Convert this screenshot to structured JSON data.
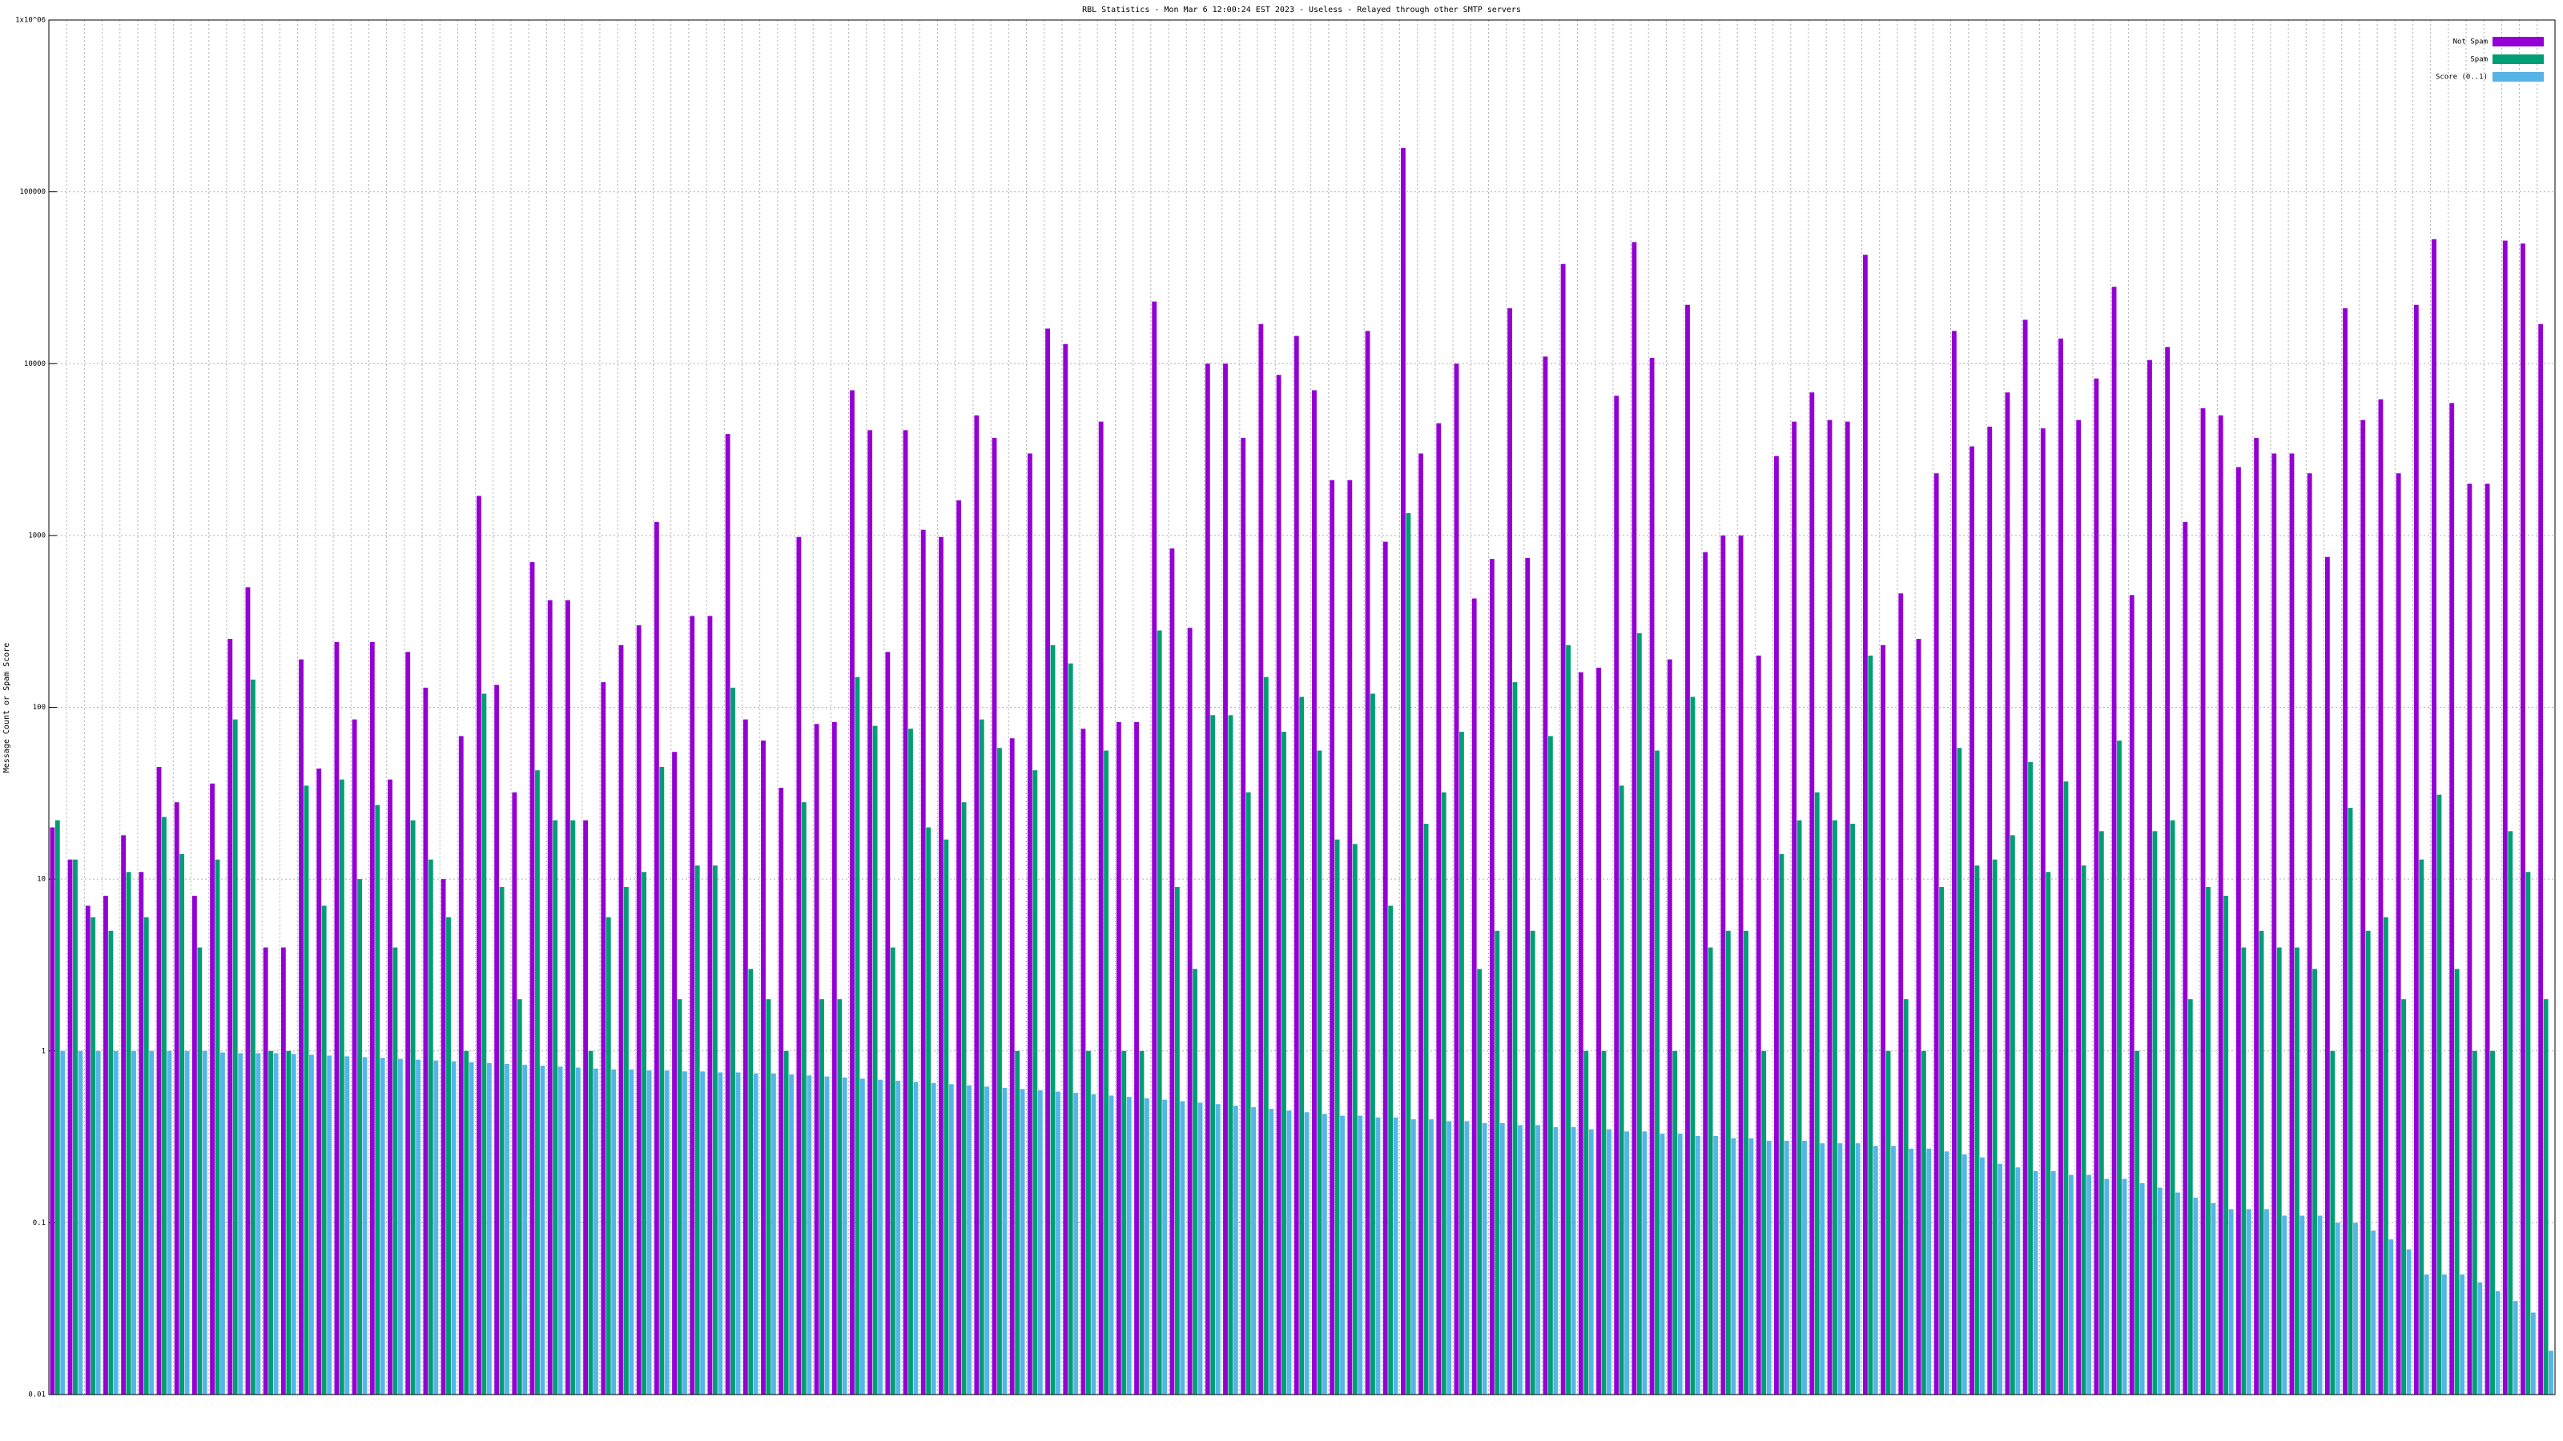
{
  "chart_data": {
    "type": "bar",
    "title": "RBL Statistics - Mon Mar  6 12:00:24 EST 2023 - Useless - Relayed through other SMTP servers",
    "ylabel": "Message Count or Spam Score",
    "log_scale": true,
    "grid": true,
    "legend": "top-right",
    "ylim": [
      0.01,
      1000000
    ],
    "yticks": [
      0.01,
      0.1,
      1,
      10,
      100,
      1000,
      10000,
      100000,
      {
        "value": 1000000,
        "label": "1x10^06"
      }
    ],
    "series": [
      {
        "name": "Not Spam",
        "color": "#9400d3",
        "values": [
          20,
          13,
          7,
          8,
          18,
          11,
          45,
          28,
          8,
          36,
          250,
          500,
          4,
          4,
          190,
          44,
          240,
          85,
          240,
          38,
          210,
          130,
          10,
          68,
          1700,
          135,
          32,
          700,
          420,
          420,
          22,
          140,
          230,
          300,
          1200,
          55,
          340,
          340,
          3900,
          85,
          64,
          34,
          980,
          80,
          82,
          7000,
          4100,
          210,
          4100,
          1080,
          980,
          1600,
          5000,
          3700,
          66,
          3000,
          16000,
          13000,
          75,
          4600,
          82,
          82,
          23000,
          840,
          290,
          10000,
          10000,
          3700,
          17000,
          8600,
          14500,
          7000,
          2100,
          2100,
          15500,
          920,
          180000,
          3000,
          4500,
          10000,
          430,
          730,
          21000,
          740,
          11000,
          38000,
          160,
          170,
          6500,
          51000,
          10800,
          190,
          22000,
          800,
          1000,
          1000,
          200,
          2900,
          4600,
          6800,
          4700,
          4600,
          43000,
          230,
          460,
          250,
          2300,
          15500,
          3300,
          4300,
          6800,
          18000,
          4200,
          14000,
          4700,
          8200,
          28000,
          450,
          10500,
          12500,
          1200,
          5500,
          5000,
          2500,
          3700,
          3000,
          3000,
          2300,
          750,
          21000,
          4700,
          6200,
          2300,
          22000,
          53000,
          5900,
          2000,
          2000,
          52000,
          50000,
          17000
        ]
      },
      {
        "name": "Spam",
        "color": "#009e73",
        "values": [
          22,
          13,
          6,
          5,
          11,
          6,
          23,
          14,
          4,
          13,
          85,
          145,
          1,
          1,
          35,
          7,
          38,
          10,
          27,
          4,
          22,
          13,
          6,
          1,
          120,
          9,
          2,
          43,
          22,
          22,
          1,
          6,
          9,
          11,
          45,
          2,
          12,
          12,
          130,
          3,
          2,
          1,
          28,
          2,
          2,
          150,
          78,
          4,
          75,
          20,
          17,
          28,
          85,
          58,
          1,
          43,
          230,
          180,
          1,
          56,
          1,
          1,
          280,
          9,
          3,
          90,
          90,
          32,
          150,
          72,
          115,
          56,
          17,
          16,
          120,
          7,
          1350,
          21,
          32,
          72,
          3,
          5,
          140,
          5,
          68,
          230,
          1,
          1,
          35,
          270,
          56,
          1,
          115,
          4,
          5,
          5,
          1,
          14,
          22,
          32,
          22,
          21,
          200,
          1,
          2,
          1,
          9,
          58,
          12,
          13,
          18,
          48,
          11,
          37,
          12,
          19,
          64,
          1,
          19,
          22,
          2,
          9,
          8,
          4,
          5,
          4,
          4,
          3,
          1,
          26,
          5,
          6,
          2,
          13,
          31,
          3,
          1,
          1,
          19,
          11,
          2
        ]
      },
      {
        "name": "Score (0..1)",
        "color": "#56b4e9",
        "values": [
          1,
          1,
          1,
          1,
          1,
          1,
          1,
          1,
          1,
          0.98,
          0.97,
          0.97,
          0.97,
          0.96,
          0.95,
          0.94,
          0.93,
          0.92,
          0.91,
          0.9,
          0.89,
          0.88,
          0.87,
          0.86,
          0.85,
          0.84,
          0.83,
          0.82,
          0.81,
          0.8,
          0.79,
          0.78,
          0.78,
          0.77,
          0.77,
          0.76,
          0.76,
          0.75,
          0.75,
          0.74,
          0.74,
          0.73,
          0.72,
          0.71,
          0.7,
          0.69,
          0.68,
          0.67,
          0.66,
          0.65,
          0.64,
          0.63,
          0.62,
          0.61,
          0.6,
          0.59,
          0.58,
          0.57,
          0.56,
          0.55,
          0.54,
          0.53,
          0.52,
          0.51,
          0.5,
          0.49,
          0.48,
          0.47,
          0.46,
          0.45,
          0.44,
          0.43,
          0.42,
          0.42,
          0.41,
          0.41,
          0.4,
          0.4,
          0.39,
          0.39,
          0.38,
          0.38,
          0.37,
          0.37,
          0.36,
          0.36,
          0.35,
          0.35,
          0.34,
          0.34,
          0.33,
          0.33,
          0.32,
          0.32,
          0.31,
          0.31,
          0.3,
          0.3,
          0.3,
          0.29,
          0.29,
          0.29,
          0.28,
          0.28,
          0.27,
          0.27,
          0.26,
          0.25,
          0.24,
          0.22,
          0.21,
          0.2,
          0.2,
          0.19,
          0.19,
          0.18,
          0.18,
          0.17,
          0.16,
          0.15,
          0.14,
          0.13,
          0.12,
          0.12,
          0.12,
          0.11,
          0.11,
          0.11,
          0.1,
          0.1,
          0.09,
          0.08,
          0.07,
          0.05,
          0.05,
          0.05,
          0.045,
          0.04,
          0.035,
          0.03,
          0.018
        ]
      }
    ]
  }
}
